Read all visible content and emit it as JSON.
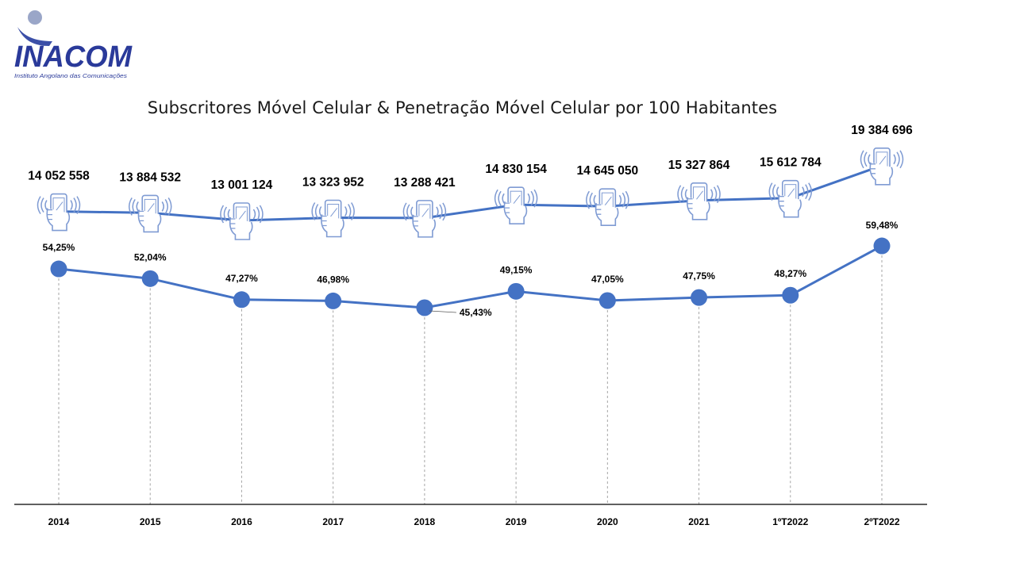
{
  "header": {
    "logo_text": "INACOM",
    "logo_subtitle": "Instituto Angolano das Comunicações"
  },
  "colors": {
    "line": "#4472C4",
    "icon": "#7f9bd3",
    "axis": "#000000",
    "dash": "#a6a6a6"
  },
  "chart_data": {
    "type": "line",
    "title": "Subscritores Móvel Celular  & Penetração Móvel Celular  por 100 Habitantes",
    "categories": [
      "2014",
      "2015",
      "2016",
      "2017",
      "2018",
      "2019",
      "2020",
      "2021",
      "1ºT2022",
      "2ºT2022"
    ],
    "series": [
      {
        "values": [
          14052558,
          13884532,
          13001124,
          13323952,
          13288421,
          14830154,
          14645050,
          15327864,
          15612784,
          19384696
        ],
        "labels": [
          "14 052 558",
          "13 884 532",
          "13 001 124",
          "13 323 952",
          "13 288 421",
          "14 830 154",
          "14 645 050",
          "15 327 864",
          "15 612 784",
          "19 384 696"
        ],
        "marker": "mobile-phone-icon"
      },
      {
        "values": [
          54.25,
          52.04,
          47.27,
          46.98,
          45.43,
          49.15,
          47.05,
          47.75,
          48.27,
          59.48
        ],
        "labels": [
          "54,25%",
          "52,04%",
          "47,27%",
          "46,98%",
          "45,43%",
          "49,15%",
          "47,05%",
          "47,75%",
          "48,27%",
          "59,48%"
        ],
        "marker": "circle"
      }
    ],
    "grid": false,
    "legend": "none"
  }
}
